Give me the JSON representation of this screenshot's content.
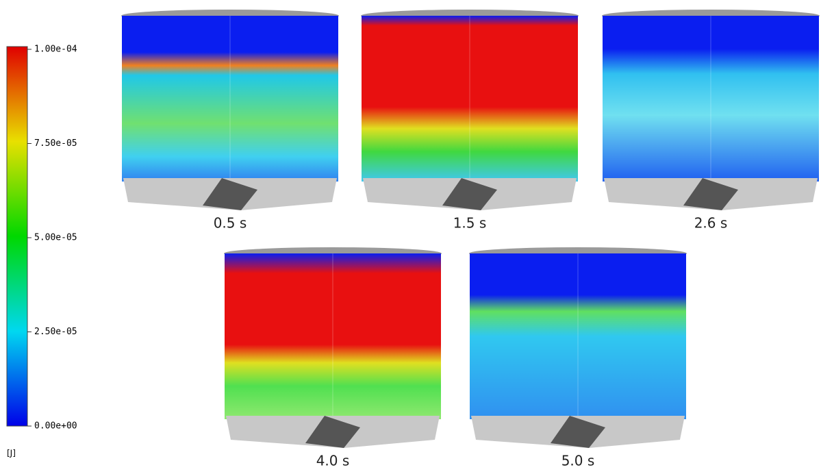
{
  "colorbar": {
    "ticks": [
      "1.00e-04",
      "7.50e-05",
      "5.00e-05",
      "2.50e-05",
      "0.00e+00"
    ],
    "unit": "[J]"
  },
  "panels": [
    {
      "label": "0.5 s"
    },
    {
      "label": "1.5 s"
    },
    {
      "label": "2.6 s"
    },
    {
      "label": "4.0 s"
    },
    {
      "label": "5.0 s"
    }
  ]
}
